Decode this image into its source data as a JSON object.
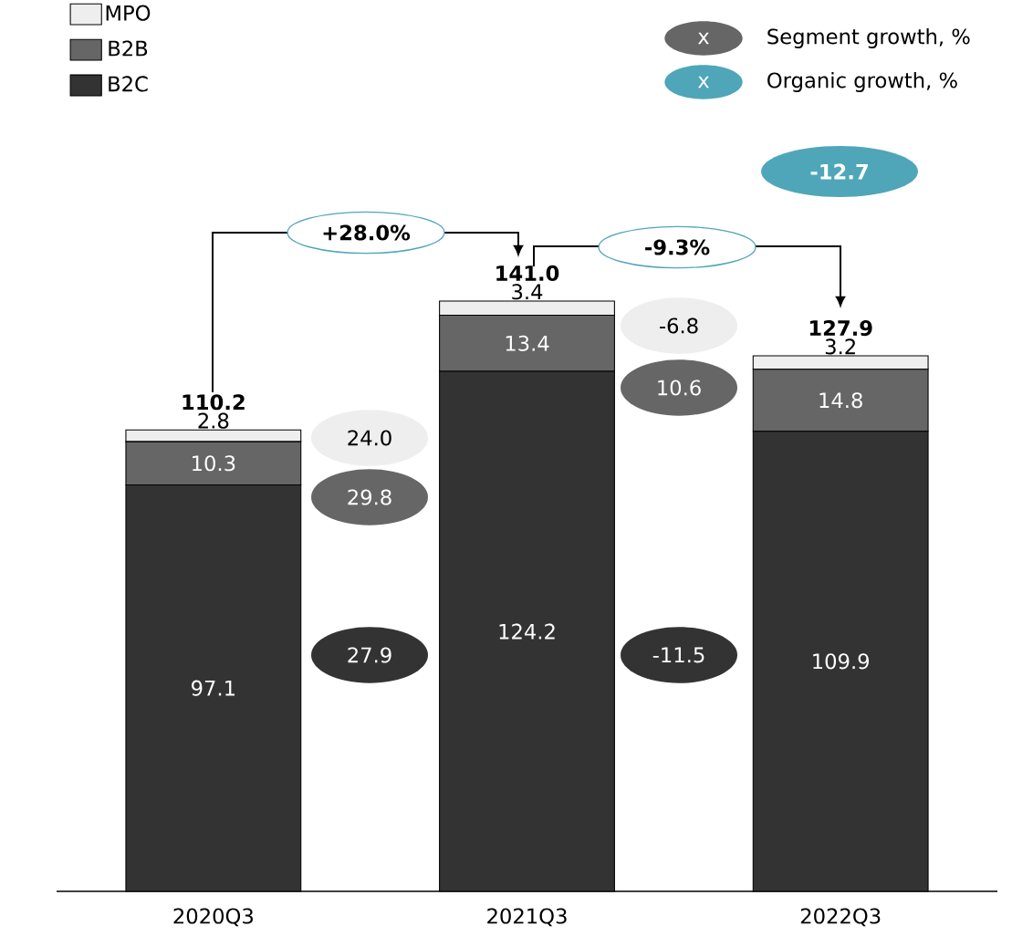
{
  "chart_data": {
    "type": "bar",
    "stacked": true,
    "categories": [
      "2020Q3",
      "2021Q3",
      "2022Q3"
    ],
    "series": [
      {
        "name": "B2C",
        "color": "#333333",
        "values": [
          97.1,
          124.2,
          109.9
        ]
      },
      {
        "name": "B2B",
        "color": "#666666",
        "values": [
          10.3,
          13.4,
          14.8
        ]
      },
      {
        "name": "MPO",
        "color": "#eeeeee",
        "values": [
          2.8,
          3.4,
          3.2
        ]
      }
    ],
    "data_labels": true,
    "totals": [
      "110.2",
      "141.0",
      "127.9"
    ],
    "legend": "top left",
    "tick_labels": "x",
    "annotations": [
      "x",
      "Segment growth, %",
      "x",
      "Organic growth, %",
      "-12.7",
      "+28.0%",
      "-9.3%",
      "24.0",
      "29.8",
      "27.9",
      "-6.8",
      "10.6",
      "-11.5"
    ]
  }
}
